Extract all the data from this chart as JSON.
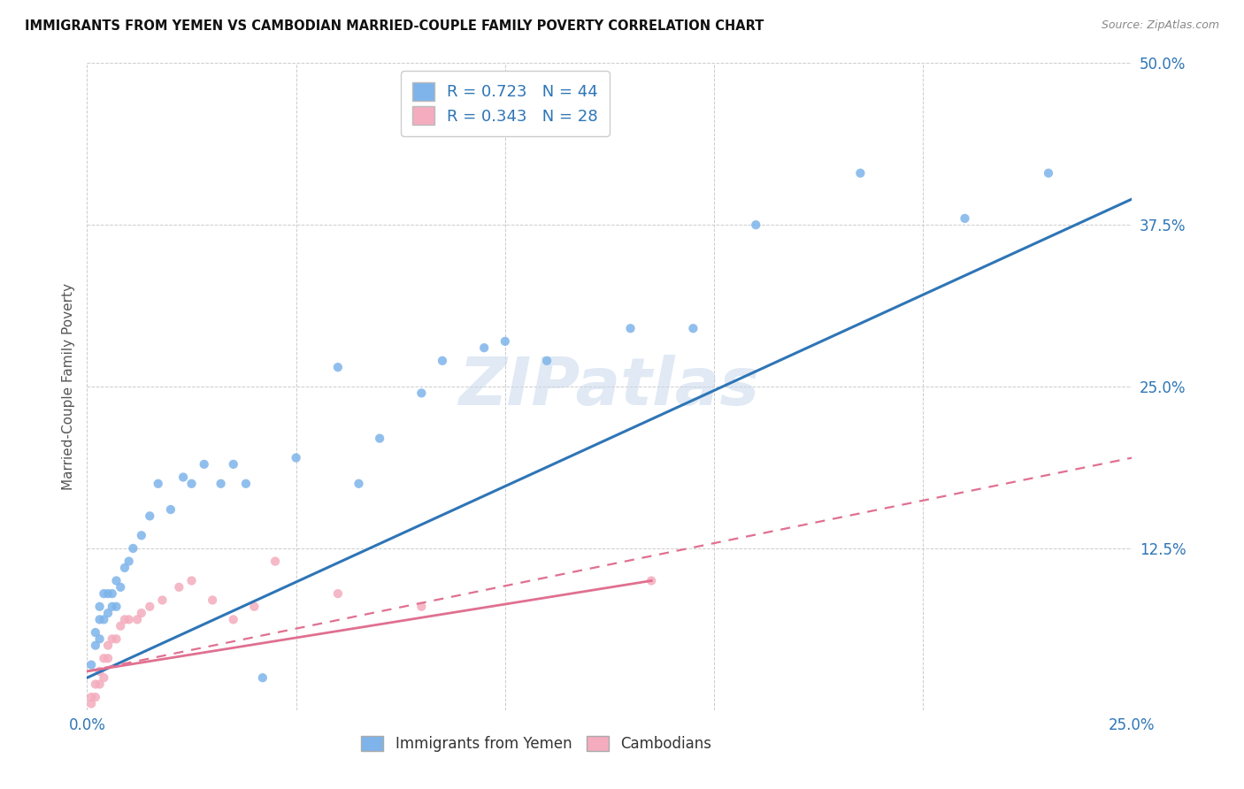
{
  "title": "IMMIGRANTS FROM YEMEN VS CAMBODIAN MARRIED-COUPLE FAMILY POVERTY CORRELATION CHART",
  "source": "Source: ZipAtlas.com",
  "ylabel": "Married-Couple Family Poverty",
  "xlim": [
    0.0,
    0.25
  ],
  "ylim": [
    0.0,
    0.5
  ],
  "x_ticks": [
    0.0,
    0.05,
    0.1,
    0.15,
    0.2,
    0.25
  ],
  "y_ticks": [
    0.0,
    0.125,
    0.25,
    0.375,
    0.5
  ],
  "x_tick_labels": [
    "0.0%",
    "",
    "",
    "",
    "",
    "25.0%"
  ],
  "y_tick_labels": [
    "",
    "12.5%",
    "25.0%",
    "37.5%",
    "50.0%"
  ],
  "legend_r1": "R = 0.723",
  "legend_n1": "N = 44",
  "legend_r2": "R = 0.343",
  "legend_n2": "N = 28",
  "color_yemen": "#7EB4EA",
  "color_cambodian": "#F4ACBE",
  "color_blue": "#2E75B6",
  "color_pink": "#E07090",
  "watermark": "ZIPatlas",
  "yemen_scatter_x": [
    0.001,
    0.002,
    0.002,
    0.003,
    0.003,
    0.003,
    0.004,
    0.004,
    0.005,
    0.005,
    0.006,
    0.006,
    0.007,
    0.007,
    0.008,
    0.009,
    0.01,
    0.011,
    0.013,
    0.015,
    0.017,
    0.02,
    0.023,
    0.025,
    0.028,
    0.032,
    0.035,
    0.038,
    0.042,
    0.05,
    0.06,
    0.065,
    0.07,
    0.08,
    0.085,
    0.095,
    0.1,
    0.11,
    0.13,
    0.145,
    0.16,
    0.185,
    0.21,
    0.23
  ],
  "yemen_scatter_y": [
    0.035,
    0.05,
    0.06,
    0.055,
    0.07,
    0.08,
    0.07,
    0.09,
    0.075,
    0.09,
    0.08,
    0.09,
    0.1,
    0.08,
    0.095,
    0.11,
    0.115,
    0.125,
    0.135,
    0.15,
    0.175,
    0.155,
    0.18,
    0.175,
    0.19,
    0.175,
    0.19,
    0.175,
    0.025,
    0.195,
    0.265,
    0.175,
    0.21,
    0.245,
    0.27,
    0.28,
    0.285,
    0.27,
    0.295,
    0.295,
    0.375,
    0.415,
    0.38,
    0.415
  ],
  "cambodian_scatter_x": [
    0.001,
    0.001,
    0.002,
    0.002,
    0.003,
    0.003,
    0.004,
    0.004,
    0.005,
    0.005,
    0.006,
    0.007,
    0.008,
    0.009,
    0.01,
    0.012,
    0.013,
    0.015,
    0.018,
    0.022,
    0.025,
    0.03,
    0.035,
    0.04,
    0.045,
    0.06,
    0.08,
    0.135
  ],
  "cambodian_scatter_y": [
    0.005,
    0.01,
    0.01,
    0.02,
    0.02,
    0.03,
    0.025,
    0.04,
    0.04,
    0.05,
    0.055,
    0.055,
    0.065,
    0.07,
    0.07,
    0.07,
    0.075,
    0.08,
    0.085,
    0.095,
    0.1,
    0.085,
    0.07,
    0.08,
    0.115,
    0.09,
    0.08,
    0.1
  ],
  "yemen_line_x": [
    0.0,
    0.25
  ],
  "yemen_line_y": [
    0.025,
    0.395
  ],
  "cambodian_solid_line_x": [
    0.0,
    0.135
  ],
  "cambodian_solid_line_y": [
    0.03,
    0.1
  ],
  "cambodian_dashed_line_x": [
    0.0,
    0.25
  ],
  "cambodian_dashed_line_y": [
    0.03,
    0.195
  ]
}
